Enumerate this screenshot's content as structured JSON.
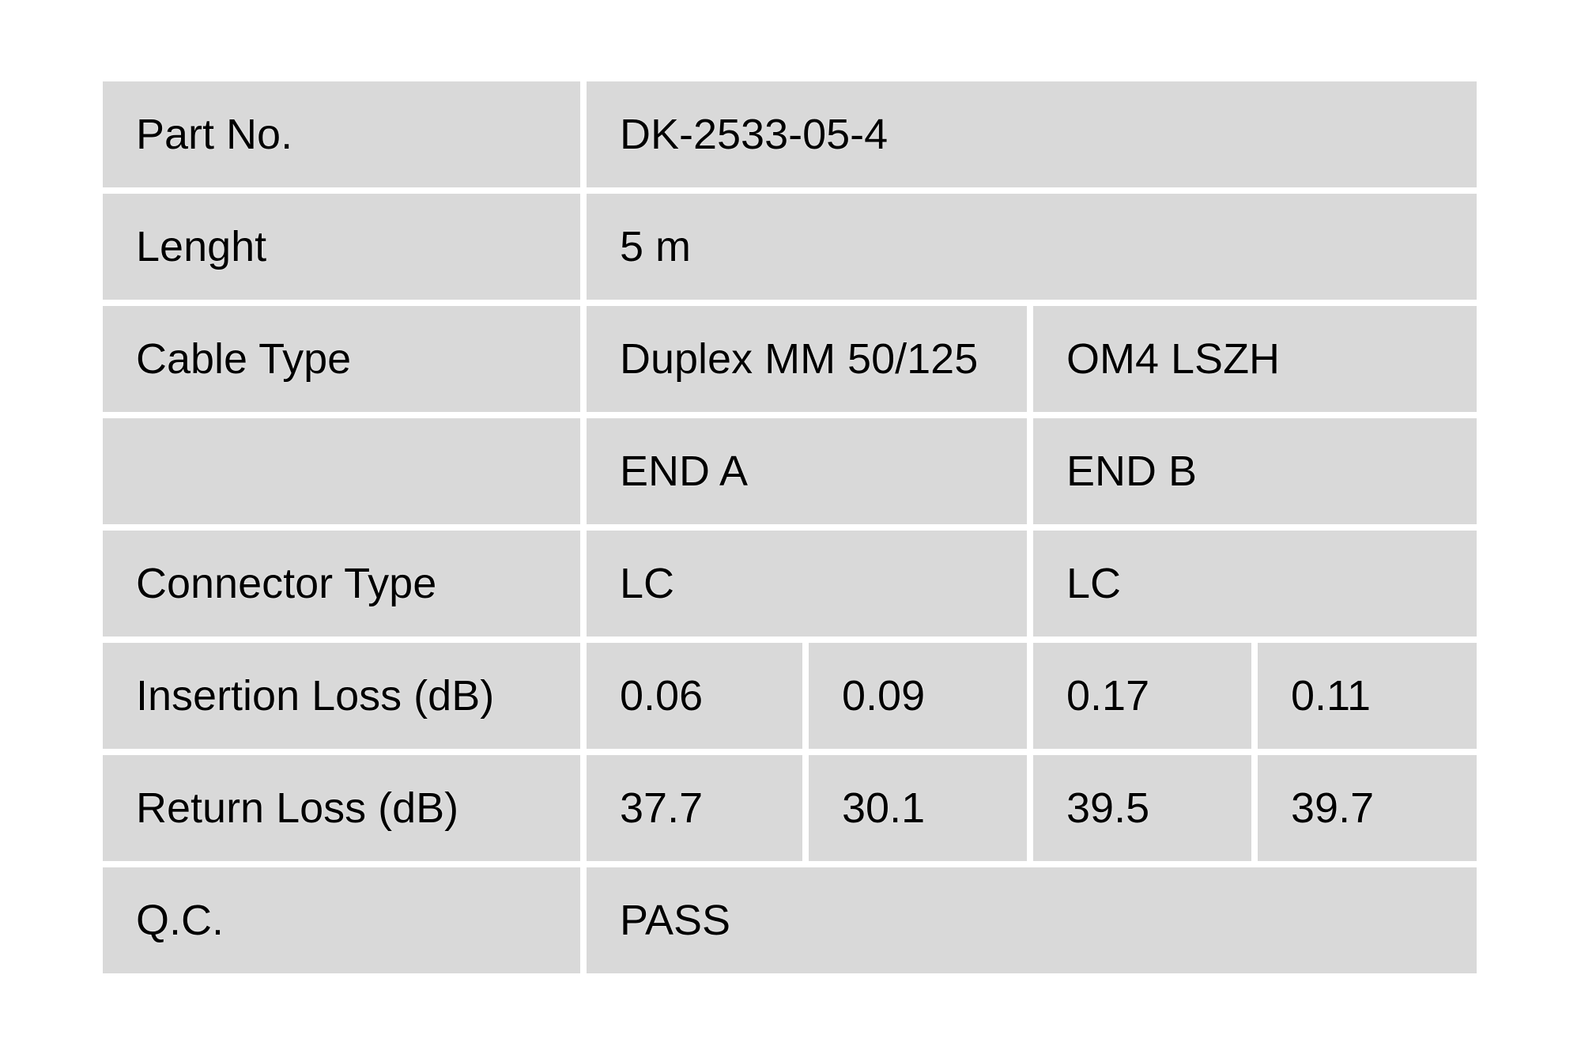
{
  "report": {
    "colors": {
      "cell_background": "#d9d9d9",
      "page_background": "#ffffff",
      "text": "#000000"
    },
    "rows": [
      {
        "label": "Part No.",
        "value": "DK-2533-05-4"
      },
      {
        "label": "Lenght",
        "value": "5 m"
      },
      {
        "label": "Cable Type",
        "values": [
          "Duplex MM 50/125",
          "OM4 LSZH"
        ]
      },
      {
        "label": "",
        "values": [
          "END A",
          "END B"
        ]
      },
      {
        "label": "Connector Type",
        "values": [
          "LC",
          "LC"
        ]
      },
      {
        "label": "Insertion Loss (dB)",
        "values": [
          "0.06",
          "0.09",
          "0.17",
          "0.11"
        ]
      },
      {
        "label": "Return Loss (dB)",
        "values": [
          "37.7",
          "30.1",
          "39.5",
          "39.7"
        ]
      },
      {
        "label": "Q.C.",
        "value": "PASS"
      }
    ]
  }
}
